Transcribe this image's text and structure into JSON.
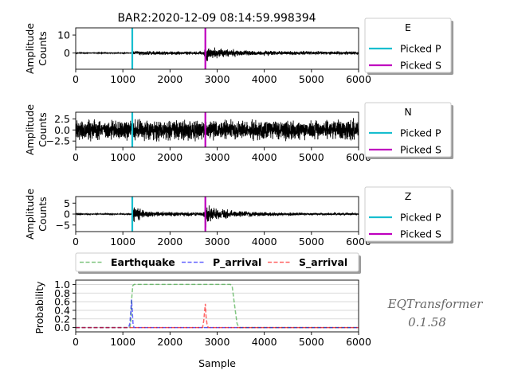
{
  "figure": {
    "title": "BAR2:2020-12-09 08:14:59.998394",
    "watermark_lines": [
      "EQTransformer",
      "0.1.58"
    ]
  },
  "chart_data": [
    {
      "type": "line",
      "id": "E",
      "ylabel": [
        "Amplitude",
        "Counts"
      ],
      "xlim": [
        0,
        6000
      ],
      "ylim": [
        -9,
        14
      ],
      "xticks": [
        0,
        1000,
        2000,
        3000,
        4000,
        5000,
        6000
      ],
      "yticks": [
        0,
        10
      ],
      "ytick_labels": [
        "0",
        "10"
      ],
      "trace_envelope": {
        "x": [
          0,
          1180,
          1200,
          1260,
          1500,
          2000,
          2700,
          2760,
          2900,
          3100,
          3400,
          3700,
          4200,
          4800,
          5400,
          6000
        ],
        "amp": [
          0.3,
          0.3,
          1.0,
          1.6,
          1.4,
          1.2,
          1.2,
          6.0,
          4.0,
          3.0,
          2.4,
          2.0,
          1.6,
          1.4,
          1.2,
          1.1
        ]
      },
      "picks": [
        {
          "name": "Picked P",
          "x": 1200,
          "color": "#17becf"
        },
        {
          "name": "Picked S",
          "x": 2750,
          "color": "#bf00bf"
        }
      ],
      "legend": {
        "title": "E",
        "placement": "right"
      }
    },
    {
      "type": "line",
      "id": "N",
      "ylabel": [
        "Amplitude",
        "Counts"
      ],
      "xlim": [
        0,
        6000
      ],
      "ylim": [
        -3.9,
        4.0
      ],
      "xticks": [
        0,
        1000,
        2000,
        3000,
        4000,
        5000,
        6000
      ],
      "yticks": [
        -2.5,
        0,
        2.5
      ],
      "ytick_labels": [
        "−2.5",
        "0.0",
        "2.5"
      ],
      "trace_envelope": {
        "x": [
          0,
          6000
        ],
        "amp": [
          3.0,
          3.0
        ]
      },
      "picks": [
        {
          "name": "Picked P",
          "x": 1200,
          "color": "#17becf"
        },
        {
          "name": "Picked S",
          "x": 2750,
          "color": "#bf00bf"
        }
      ],
      "legend": {
        "title": "N",
        "placement": "right"
      }
    },
    {
      "type": "line",
      "id": "Z",
      "ylabel": [
        "Amplitude",
        "Counts"
      ],
      "xlim": [
        0,
        6000
      ],
      "ylim": [
        -8,
        8
      ],
      "xticks": [
        0,
        1000,
        2000,
        3000,
        4000,
        5000,
        6000
      ],
      "yticks": [
        -5,
        0,
        5
      ],
      "ytick_labels": [
        "−5",
        "0",
        "5"
      ],
      "trace_envelope": {
        "x": [
          0,
          1180,
          1200,
          1250,
          1400,
          1700,
          2200,
          2700,
          2760,
          2850,
          3000,
          3300,
          3800,
          4400,
          5000,
          6000
        ],
        "amp": [
          0.3,
          0.3,
          6.5,
          5.0,
          2.5,
          1.4,
          1.2,
          1.1,
          6.8,
          5.0,
          3.2,
          2.0,
          1.4,
          1.0,
          0.7,
          0.6
        ]
      },
      "picks": [
        {
          "name": "Picked P",
          "x": 1200,
          "color": "#17becf"
        },
        {
          "name": "Picked S",
          "x": 2750,
          "color": "#bf00bf"
        }
      ],
      "legend": {
        "title": "Z",
        "placement": "right"
      }
    },
    {
      "type": "line",
      "id": "probability",
      "xlabel": "Sample",
      "ylabel": "Probability",
      "xlim": [
        0,
        6000
      ],
      "ylim": [
        -0.1,
        1.1
      ],
      "xticks": [
        0,
        1000,
        2000,
        3000,
        4000,
        5000,
        6000
      ],
      "yticks": [
        0.0,
        0.2,
        0.4,
        0.6,
        0.8,
        1.0
      ],
      "ytick_labels": [
        "0.0",
        "0.2",
        "0.4",
        "0.6",
        "0.8",
        "1.0"
      ],
      "grid": "y",
      "legend": {
        "placement": "top",
        "entries": [
          "Earthquake",
          "P_arrival",
          "S_arrival"
        ]
      },
      "series": [
        {
          "name": "Earthquake",
          "color": "#2ca02c",
          "x": [
            0,
            1150,
            1170,
            1190,
            1210,
            1240,
            3280,
            3320,
            3360,
            3420,
            3460,
            6000
          ],
          "y": [
            0,
            0,
            0.15,
            0.7,
            0.97,
            1.0,
            1.0,
            0.95,
            0.6,
            0.1,
            0,
            0
          ]
        },
        {
          "name": "P_arrival",
          "color": "#0000ff",
          "x": [
            0,
            1120,
            1150,
            1170,
            1185,
            1200,
            1215,
            1235,
            6000
          ],
          "y": [
            0,
            0,
            0.1,
            0.4,
            0.65,
            0.38,
            0.1,
            0,
            0
          ]
        },
        {
          "name": "S_arrival",
          "color": "#ff0000",
          "x": [
            0,
            2690,
            2715,
            2735,
            2750,
            2765,
            2785,
            2810,
            6000
          ],
          "y": [
            0,
            0,
            0.15,
            0.38,
            0.55,
            0.25,
            0.08,
            0,
            0
          ]
        }
      ]
    }
  ]
}
